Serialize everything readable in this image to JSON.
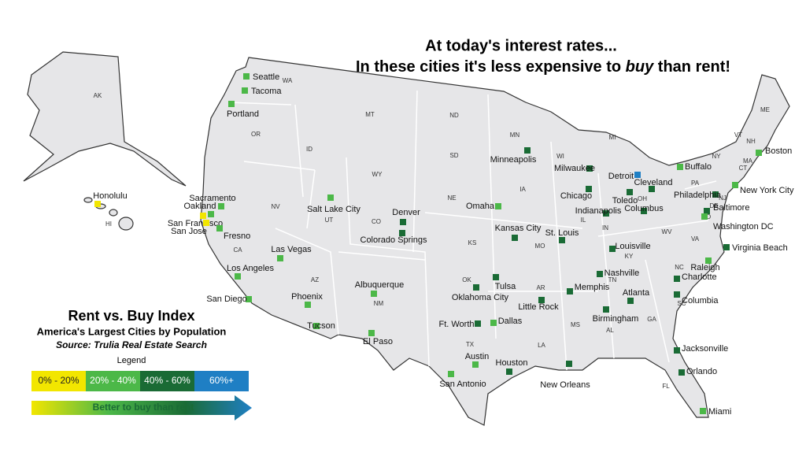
{
  "title": {
    "line1": "At today's interest rates...",
    "line2_before": "In these cities it's less expensive to ",
    "line2_emphasis": "buy",
    "line2_after": " than rent!"
  },
  "legend": {
    "title": "Rent vs. Buy Index",
    "subtitle": "America's Largest Cities by Population",
    "source": "Source: Trulia Real Estate Search",
    "label": "Legend",
    "bins": [
      {
        "label": "0% - 20%",
        "color": "#f2e600"
      },
      {
        "label": "20% - 40%",
        "color": "#4cb848"
      },
      {
        "label": "40% - 60%",
        "color": "#1a6b35"
      },
      {
        "label": "60%+",
        "color": "#1f7fc4"
      }
    ],
    "arrow": "Better to buy than rent"
  },
  "states": [
    "AK",
    "HI",
    "WA",
    "OR",
    "CA",
    "NV",
    "ID",
    "MT",
    "WY",
    "UT",
    "CO",
    "AZ",
    "NM",
    "ND",
    "SD",
    "NE",
    "KS",
    "OK",
    "TX",
    "MN",
    "IA",
    "MO",
    "AR",
    "LA",
    "WI",
    "IL",
    "MI",
    "IN",
    "OH",
    "KY",
    "TN",
    "MS",
    "AL",
    "GA",
    "FL",
    "SC",
    "NC",
    "VA",
    "WV",
    "PA",
    "NY",
    "VT",
    "NH",
    "ME",
    "MA",
    "CT",
    "NJ",
    "MD",
    "DE"
  ],
  "cities": [
    {
      "name": "Seattle",
      "color": "#4cb848"
    },
    {
      "name": "Tacoma",
      "color": "#4cb848"
    },
    {
      "name": "Portland",
      "color": "#4cb848"
    },
    {
      "name": "Honolulu",
      "color": "#f2e600"
    },
    {
      "name": "Sacramento",
      "color": "#4cb848"
    },
    {
      "name": "Oakland",
      "color": "#4cb848"
    },
    {
      "name": "San Francisco",
      "color": "#f2e600"
    },
    {
      "name": "San Jose",
      "color": "#f2e600"
    },
    {
      "name": "Fresno",
      "color": "#4cb848"
    },
    {
      "name": "Las Vegas",
      "color": "#4cb848"
    },
    {
      "name": "Los Angeles",
      "color": "#4cb848"
    },
    {
      "name": "San Diego",
      "color": "#4cb848"
    },
    {
      "name": "Salt Lake City",
      "color": "#4cb848"
    },
    {
      "name": "Denver",
      "color": "#1a6b35"
    },
    {
      "name": "Colorado Springs",
      "color": "#1a6b35"
    },
    {
      "name": "Phoenix",
      "color": "#4cb848"
    },
    {
      "name": "Tucson",
      "color": "#4cb848"
    },
    {
      "name": "Albuquerque",
      "color": "#4cb848"
    },
    {
      "name": "El Paso",
      "color": "#4cb848"
    },
    {
      "name": "Omaha",
      "color": "#4cb848"
    },
    {
      "name": "Kansas City",
      "color": "#1a6b35"
    },
    {
      "name": "St. Louis",
      "color": "#1a6b35"
    },
    {
      "name": "Tulsa",
      "color": "#1a6b35"
    },
    {
      "name": "Oklahoma City",
      "color": "#1a6b35"
    },
    {
      "name": "Ft. Worth",
      "color": "#1a6b35"
    },
    {
      "name": "Dallas",
      "color": "#4cb848"
    },
    {
      "name": "Austin",
      "color": "#4cb848"
    },
    {
      "name": "San Antonio",
      "color": "#4cb848"
    },
    {
      "name": "Houston",
      "color": "#1a6b35"
    },
    {
      "name": "Little Rock",
      "color": "#1a6b35"
    },
    {
      "name": "Memphis",
      "color": "#1a6b35"
    },
    {
      "name": "Minneapolis",
      "color": "#1a6b35"
    },
    {
      "name": "Milwaukee",
      "color": "#1a6b35"
    },
    {
      "name": "Chicago",
      "color": "#1a6b35"
    },
    {
      "name": "Detroit",
      "color": "#1f7fc4"
    },
    {
      "name": "Cleveland",
      "color": "#1a6b35"
    },
    {
      "name": "Toledo",
      "color": "#1a6b35"
    },
    {
      "name": "Columbus",
      "color": "#1a6b35"
    },
    {
      "name": "Indianapolis",
      "color": "#1a6b35"
    },
    {
      "name": "Louisville",
      "color": "#1a6b35"
    },
    {
      "name": "Nashville",
      "color": "#1a6b35"
    },
    {
      "name": "Birmingham",
      "color": "#1a6b35"
    },
    {
      "name": "Atlanta",
      "color": "#1a6b35"
    },
    {
      "name": "Buffalo",
      "color": "#4cb848"
    },
    {
      "name": "Boston",
      "color": "#4cb848"
    },
    {
      "name": "New York City",
      "color": "#4cb848"
    },
    {
      "name": "Philadelphia",
      "color": "#1a6b35"
    },
    {
      "name": "Baltimore",
      "color": "#1a6b35"
    },
    {
      "name": "Washington DC",
      "color": "#4cb848"
    },
    {
      "name": "Virginia Beach",
      "color": "#1a6b35"
    },
    {
      "name": "Raleigh",
      "color": "#4cb848"
    },
    {
      "name": "Charlotte",
      "color": "#1a6b35"
    },
    {
      "name": "Columbia",
      "color": "#1a6b35"
    },
    {
      "name": "Jacksonville",
      "color": "#1a6b35"
    },
    {
      "name": "Orlando",
      "color": "#1a6b35"
    },
    {
      "name": "Miami",
      "color": "#4cb848"
    },
    {
      "name": "New Orleans",
      "color": "#1a6b35"
    }
  ]
}
